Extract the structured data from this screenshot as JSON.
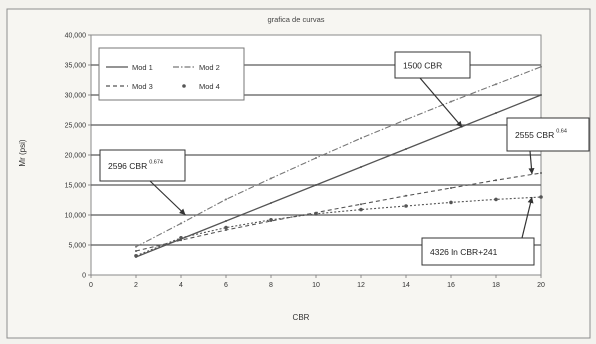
{
  "chart_data": {
    "type": "line",
    "title": "grafica de curvas",
    "xlabel": "CBR",
    "ylabel": "Mr (psi)",
    "xlim": [
      0,
      20
    ],
    "ylim": [
      0,
      40000
    ],
    "x_ticks": [
      "0",
      "2",
      "4",
      "6",
      "8",
      "10",
      "12",
      "14",
      "16",
      "18",
      "20"
    ],
    "y_ticks": [
      "0",
      "5,000",
      "10,000",
      "15,000",
      "20,000",
      "25,000",
      "30,000",
      "35,000",
      "40,000"
    ],
    "grid": "horizontal",
    "legend_position": "top-left",
    "series": [
      {
        "name": "Mod 1",
        "style": "solid",
        "color": "#555555",
        "x": [
          2,
          4,
          6,
          8,
          10,
          12,
          14,
          16,
          18,
          20
        ],
        "y": [
          3000,
          6000,
          9000,
          12000,
          15000,
          18000,
          21000,
          24000,
          27000,
          30000
        ]
      },
      {
        "name": "Mod 2",
        "style": "dash-dot",
        "color": "#777777",
        "x": [
          2,
          4,
          6,
          8,
          10,
          12,
          14,
          16,
          18,
          20
        ],
        "y": [
          4700,
          8600,
          12600,
          16100,
          19500,
          22800,
          25900,
          28900,
          31800,
          34700
        ]
      },
      {
        "name": "Mod 3",
        "style": "dashed",
        "color": "#555555",
        "x": [
          2,
          4,
          6,
          8,
          10,
          12,
          14,
          16,
          18,
          20
        ],
        "y": [
          4000,
          5800,
          7500,
          9000,
          10400,
          11800,
          13200,
          14500,
          15800,
          17000
        ]
      },
      {
        "name": "Mod 4",
        "style": "markers",
        "color": "#555555",
        "x": [
          2,
          4,
          6,
          8,
          10,
          12,
          14,
          16,
          18,
          20
        ],
        "y": [
          3200,
          6200,
          7900,
          9200,
          10200,
          10900,
          11500,
          12100,
          12600,
          13000
        ]
      }
    ],
    "annotations": [
      {
        "text": "1500 CBR",
        "sup": "",
        "target": [
          16.5,
          24600
        ]
      },
      {
        "text": "2555 CBR",
        "sup": "0.64",
        "target": [
          19.6,
          16800
        ]
      },
      {
        "text": "2596 CBR",
        "sup": "0.674",
        "target": [
          4.2,
          10000
        ]
      },
      {
        "text": "4326 ln CBR+241",
        "sup": "",
        "target": [
          19.6,
          13000
        ]
      }
    ]
  }
}
